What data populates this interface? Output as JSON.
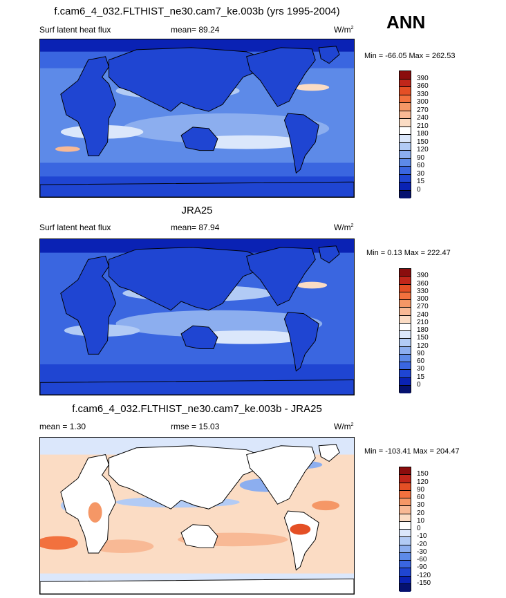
{
  "season": "ANN",
  "panels": [
    {
      "title": "f.cam6_4_032.FLTHIST_ne30.cam7_ke.003b (yrs 1995-2004)",
      "left_label": "Surf latent heat flux",
      "center_label": "mean=  89.24",
      "units": "W/m",
      "units_exp": "2",
      "minmax": "Min = -66.05 Max = 262.53"
    },
    {
      "title": "JRA25",
      "left_label": "Surf latent heat flux",
      "center_label": "mean=  87.94",
      "units": "W/m",
      "units_exp": "2",
      "minmax": "Min =  0.13 Max = 222.47"
    },
    {
      "title": "f.cam6_4_032.FLTHIST_ne30.cam7_ke.003b - JRA25",
      "left_label": "mean =   1.30",
      "center_label": "rmse =  15.03",
      "units": "W/m",
      "units_exp": "2",
      "minmax": "Min = -103.41 Max = 204.47"
    }
  ],
  "colorbars": {
    "abs": {
      "labels": [
        "390",
        "360",
        "330",
        "300",
        "270",
        "240",
        "210",
        "180",
        "150",
        "120",
        "90",
        "60",
        "30",
        "15",
        "0"
      ],
      "colors": [
        "#8b0d0d",
        "#c1261a",
        "#e44f25",
        "#f2713e",
        "#f59766",
        "#f8b995",
        "#fbdcc4",
        "#ffffff",
        "#dbe7fb",
        "#b2cbf5",
        "#8caeef",
        "#5d8ae8",
        "#3a66e0",
        "#1f45d2",
        "#0a22b4",
        "#051170"
      ]
    },
    "diff": {
      "labels": [
        "150",
        "120",
        "90",
        "60",
        "30",
        "20",
        "10",
        "0",
        "-10",
        "-20",
        "-30",
        "-60",
        "-90",
        "-120",
        "-150"
      ],
      "colors": [
        "#8b0d0d",
        "#c1261a",
        "#e44f25",
        "#f2713e",
        "#f59766",
        "#f8b995",
        "#fbdcc4",
        "#ffffff",
        "#dbe7fb",
        "#b2cbf5",
        "#8caeef",
        "#5d8ae8",
        "#3a66e0",
        "#1f45d2",
        "#0a22b4",
        "#051170"
      ]
    }
  },
  "chart_data": [
    {
      "type": "heatmap",
      "title": "f.cam6_4_032.FLTHIST_ne30.cam7_ke.003b (yrs 1995-2004)",
      "variable": "Surf latent heat flux",
      "units": "W/m2",
      "mean": 89.24,
      "min": -66.05,
      "max": 262.53,
      "levels": [
        0,
        15,
        30,
        60,
        90,
        120,
        150,
        180,
        210,
        240,
        270,
        300,
        330,
        360,
        390
      ]
    },
    {
      "type": "heatmap",
      "title": "JRA25",
      "variable": "Surf latent heat flux",
      "units": "W/m2",
      "mean": 87.94,
      "min": 0.13,
      "max": 222.47,
      "levels": [
        0,
        15,
        30,
        60,
        90,
        120,
        150,
        180,
        210,
        240,
        270,
        300,
        330,
        360,
        390
      ]
    },
    {
      "type": "heatmap",
      "title": "f.cam6_4_032.FLTHIST_ne30.cam7_ke.003b - JRA25",
      "units": "W/m2",
      "mean": 1.3,
      "rmse": 15.03,
      "min": -103.41,
      "max": 204.47,
      "levels": [
        -150,
        -120,
        -90,
        -60,
        -30,
        -20,
        -10,
        0,
        10,
        20,
        30,
        60,
        90,
        120,
        150
      ]
    }
  ]
}
